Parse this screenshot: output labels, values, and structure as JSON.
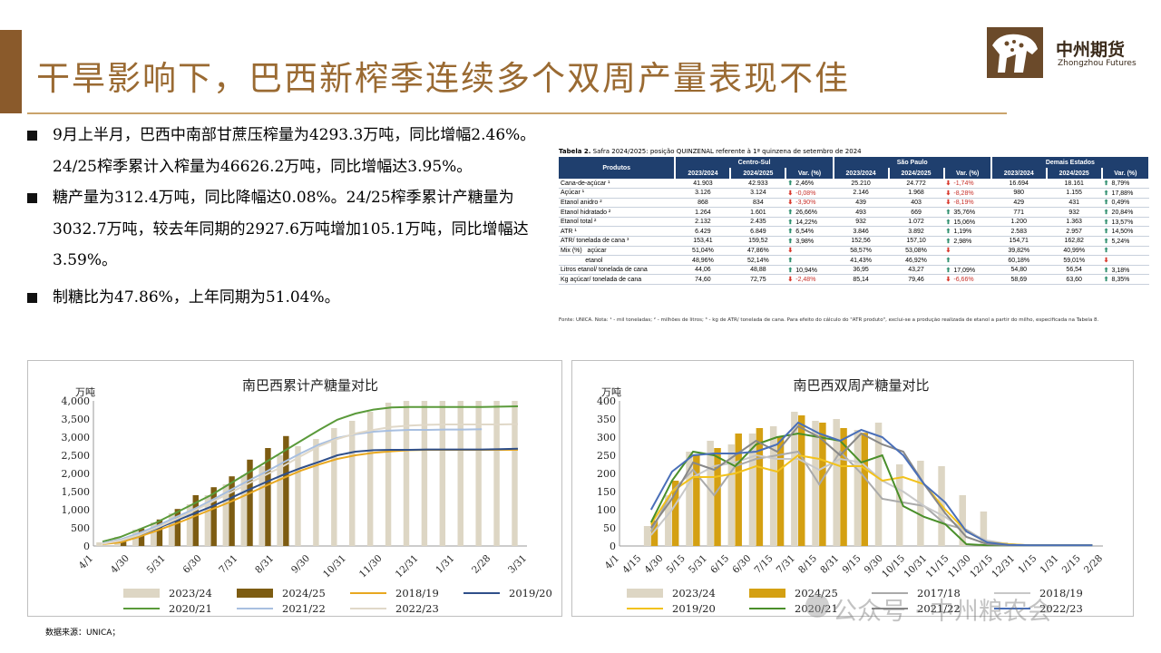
{
  "title": "干旱影响下，巴西新榨季连续多个双周产量表现不佳",
  "logo": {
    "cn": "中州期货",
    "en": "Zhongzhou Futures"
  },
  "bullets": [
    "9月上半月，巴西中南部甘蔗压榨量为4293.3万吨，同比增幅2.46%。24/25榨季累计入榨量为46626.2万吨，同比增幅达3.95%。",
    "糖产量为312.4万吨，同比降幅达0.08%。24/25榨季累计产糖量为3032.7万吨，较去年同期的2927.6万吨增加105.1万吨，同比增幅达3.59%。",
    "制糖比为47.86%，上年同期为51.04%。"
  ],
  "table": {
    "caption_bold": "Tabela 2.",
    "caption_rest": " Safra 2024/2025: posição QUINZENAL referente à 1ª quinzena de setembro de 2024",
    "header_product": "Produtos",
    "groups": [
      "Centro-Sul",
      "São Paulo",
      "Demais Estados"
    ],
    "subheaders": [
      "2023/2024",
      "2024/2025",
      "Var. (%)"
    ],
    "rows": [
      {
        "label": "Cana-de-açúcar ¹",
        "cells": [
          [
            "41.903",
            "42.933",
            "up",
            "2,46%"
          ],
          [
            "25.210",
            "24.772",
            "down",
            "-1,74%"
          ],
          [
            "16.694",
            "18.161",
            "up",
            "8,79%"
          ]
        ]
      },
      {
        "label": "Açúcar ¹",
        "cells": [
          [
            "3.126",
            "3.124",
            "down",
            "-0,08%"
          ],
          [
            "2.146",
            "1.968",
            "down",
            "-8,28%"
          ],
          [
            "980",
            "1.155",
            "up",
            "17,88%"
          ]
        ]
      },
      {
        "label": "Etanol anidro ²",
        "cells": [
          [
            "868",
            "834",
            "down",
            "-3,90%"
          ],
          [
            "439",
            "403",
            "down",
            "-8,19%"
          ],
          [
            "429",
            "431",
            "up",
            "0,49%"
          ]
        ]
      },
      {
        "label": "Etanol hidratado ²",
        "cells": [
          [
            "1.264",
            "1.601",
            "up",
            "26,66%"
          ],
          [
            "493",
            "669",
            "up",
            "35,76%"
          ],
          [
            "771",
            "932",
            "up",
            "20,84%"
          ]
        ]
      },
      {
        "label": "Etanol total ²",
        "cells": [
          [
            "2.132",
            "2.435",
            "up",
            "14,22%"
          ],
          [
            "932",
            "1.072",
            "up",
            "15,06%"
          ],
          [
            "1.200",
            "1.363",
            "up",
            "13,57%"
          ]
        ]
      },
      {
        "label": "ATR ¹",
        "cells": [
          [
            "6.429",
            "6.849",
            "up",
            "6,54%"
          ],
          [
            "3.846",
            "3.892",
            "up",
            "1,19%"
          ],
          [
            "2.583",
            "2.957",
            "up",
            "14,50%"
          ]
        ]
      },
      {
        "label": "ATR/ tonelada de cana ³",
        "cells": [
          [
            "153,41",
            "159,52",
            "up",
            "3,98%"
          ],
          [
            "152,56",
            "157,10",
            "up",
            "2,98%"
          ],
          [
            "154,71",
            "162,82",
            "up",
            "5,24%"
          ]
        ]
      },
      {
        "label": "Mix (%)   açúcar",
        "cells": [
          [
            "51,04%",
            "47,86%",
            "down",
            ""
          ],
          [
            "58,57%",
            "53,08%",
            "down",
            ""
          ],
          [
            "39,82%",
            "40,99%",
            "up",
            ""
          ]
        ]
      },
      {
        "label": "              etanol",
        "cells": [
          [
            "48,96%",
            "52,14%",
            "up",
            ""
          ],
          [
            "41,43%",
            "46,92%",
            "up",
            ""
          ],
          [
            "60,18%",
            "59,01%",
            "down",
            ""
          ]
        ]
      },
      {
        "label": "Litros etanol/ tonelada de cana",
        "cells": [
          [
            "44,06",
            "48,88",
            "up",
            "10,94%"
          ],
          [
            "36,95",
            "43,27",
            "up",
            "17,09%"
          ],
          [
            "54,80",
            "56,54",
            "up",
            "3,18%"
          ]
        ]
      },
      {
        "label": "Kg açúcar/ tonelada de cana",
        "cells": [
          [
            "74,60",
            "72,75",
            "down",
            "-2,48%"
          ],
          [
            "85,14",
            "79,46",
            "down",
            "-6,66%"
          ],
          [
            "58,69",
            "63,60",
            "up",
            "8,35%"
          ]
        ]
      }
    ],
    "footnote": "Fonte: UNICA. Nota: ¹ - mil toneladas; ² - milhões de litros; ³ - kg de ATR/ tonelada de cana. Para efeito do cálculo do \"ATR produto\", exclui-se a produção realizada de etanol a partir do milho, especificada na Tabela 8."
  },
  "source": "数据来源：UNICA；",
  "watermark": "公众号 · 中州粮农会",
  "colors": {
    "c2324": "#ddd6c4",
    "c2425": "#7d5c12",
    "c1819": "#e8a820",
    "c1920": "#2f4f8a",
    "c2021": "#5a9a3a",
    "c2122": "#a8bfe0",
    "c2223": "#e0d8c8",
    "c2425b": "#d4a012"
  },
  "chart_data": [
    {
      "type": "bar",
      "title": "南巴西累计产糖量对比",
      "ylabel": "万吨",
      "ylim": [
        0,
        4000
      ],
      "yticks": [
        "0",
        "500",
        "1,000",
        "1,500",
        "2,000",
        "2,500",
        "3,000",
        "3,500",
        "4,000"
      ],
      "xticks": [
        "4/1",
        "4/30",
        "5/31",
        "6/30",
        "7/31",
        "8/31",
        "9/30",
        "10/31",
        "11/30",
        "12/31",
        "1/31",
        "2/28",
        "3/31"
      ],
      "n_points": 24,
      "series": [
        {
          "name": "2023/24",
          "kind": "bar",
          "color": "#ddd6c4",
          "values": [
            100,
            250,
            450,
            650,
            900,
            1150,
            1400,
            1700,
            1950,
            2200,
            2500,
            2750,
            2950,
            3250,
            3450,
            3700,
            3950,
            4000,
            4000,
            4000,
            4000,
            4000,
            4000,
            4000
          ]
        },
        {
          "name": "2024/25",
          "kind": "bar",
          "color": "#7d5c12",
          "values": [
            null,
            130,
            480,
            730,
            1020,
            1400,
            1620,
            1920,
            2380,
            2700,
            3030,
            null,
            null,
            null,
            null,
            null,
            null,
            null,
            null,
            null,
            null,
            null,
            null,
            null
          ]
        },
        {
          "name": "2018/19",
          "kind": "line",
          "color": "#e8a820",
          "values": [
            50,
            100,
            250,
            420,
            600,
            800,
            1000,
            1200,
            1420,
            1650,
            1870,
            2080,
            2250,
            2400,
            2500,
            2570,
            2610,
            2640,
            2650,
            2650,
            2650,
            2650,
            2650,
            2650
          ]
        },
        {
          "name": "2019/20",
          "kind": "line",
          "color": "#2f4f8a",
          "values": [
            80,
            150,
            300,
            480,
            680,
            880,
            1080,
            1300,
            1530,
            1750,
            1960,
            2150,
            2320,
            2500,
            2600,
            2640,
            2650,
            2650,
            2660,
            2660,
            2660,
            2660,
            2670,
            2680
          ]
        },
        {
          "name": "2020/21",
          "kind": "line",
          "color": "#5a9a3a",
          "values": [
            120,
            250,
            450,
            650,
            900,
            1150,
            1400,
            1700,
            2000,
            2300,
            2600,
            2900,
            3200,
            3480,
            3650,
            3760,
            3820,
            3830,
            3830,
            3830,
            3830,
            3830,
            3840,
            3850
          ]
        },
        {
          "name": "2021/22",
          "kind": "line",
          "color": "#a8bfe0",
          "values": [
            80,
            180,
            350,
            550,
            780,
            1000,
            1250,
            1520,
            1780,
            2030,
            2300,
            2560,
            2800,
            2980,
            3080,
            3150,
            3180,
            3200,
            3200,
            3210,
            3210,
            3220,
            null,
            null
          ]
        },
        {
          "name": "2022/23",
          "kind": "line",
          "color": "#e0d8c8",
          "values": [
            60,
            150,
            300,
            500,
            720,
            950,
            1200,
            1450,
            1700,
            1950,
            2200,
            2480,
            2750,
            2950,
            3100,
            3200,
            3280,
            3320,
            3340,
            3350,
            3350,
            3350,
            3350,
            3360
          ]
        }
      ]
    },
    {
      "type": "bar",
      "title": "南巴西双周产糖量对比",
      "ylabel": "万吨",
      "ylim": [
        0,
        400
      ],
      "yticks": [
        "0",
        "50",
        "100",
        "150",
        "200",
        "250",
        "300",
        "350",
        "400"
      ],
      "xticks": [
        "4/1",
        "4/15",
        "4/30",
        "5/15",
        "5/31",
        "6/15",
        "6/30",
        "7/15",
        "7/31",
        "8/15",
        "8/31",
        "9/15",
        "9/30",
        "10/15",
        "10/31",
        "11/15",
        "11/30",
        "12/15",
        "12/31",
        "1/15",
        "1/31",
        "2/15",
        "2/28"
      ],
      "n_points": 23,
      "series": [
        {
          "name": "2023/24",
          "kind": "bar",
          "color": "#ddd6c4",
          "values": [
            null,
            55,
            140,
            260,
            290,
            280,
            310,
            330,
            370,
            345,
            350,
            320,
            340,
            225,
            235,
            220,
            140,
            95,
            10,
            5,
            3,
            5,
            5
          ]
        },
        {
          "name": "2024/25",
          "kind": "bar",
          "color": "#d4a012",
          "values": [
            null,
            70,
            180,
            250,
            270,
            310,
            325,
            300,
            360,
            340,
            325,
            312,
            null,
            null,
            null,
            null,
            null,
            null,
            null,
            null,
            null,
            null,
            null
          ]
        },
        {
          "name": "2017/18",
          "kind": "line",
          "color": "#aaaaaa",
          "values": [
            null,
            40,
            150,
            210,
            140,
            220,
            240,
            250,
            260,
            170,
            260,
            200,
            130,
            120,
            110,
            60,
            45,
            10,
            5,
            2,
            2,
            2,
            2
          ]
        },
        {
          "name": "2018/19",
          "kind": "line",
          "color": "#c8c8c8",
          "values": [
            null,
            30,
            100,
            190,
            220,
            230,
            250,
            240,
            240,
            210,
            240,
            230,
            180,
            150,
            110,
            80,
            40,
            15,
            5,
            2,
            2,
            2,
            2
          ]
        },
        {
          "name": "2019/20",
          "kind": "line",
          "color": "#f2c21b",
          "values": [
            null,
            60,
            150,
            190,
            190,
            200,
            220,
            205,
            250,
            240,
            220,
            220,
            180,
            190,
            170,
            100,
            40,
            10,
            5,
            2,
            2,
            2,
            2
          ]
        },
        {
          "name": "2020/21",
          "kind": "line",
          "color": "#4a8f2a",
          "values": [
            null,
            65,
            180,
            260,
            250,
            220,
            280,
            300,
            310,
            300,
            290,
            230,
            250,
            110,
            80,
            60,
            5,
            2,
            2,
            2,
            2,
            2,
            2
          ]
        },
        {
          "name": "2021/22",
          "kind": "line",
          "color": "#888888",
          "values": [
            null,
            50,
            130,
            230,
            210,
            250,
            290,
            260,
            330,
            300,
            250,
            310,
            280,
            260,
            170,
            90,
            25,
            5,
            2,
            2,
            2,
            2,
            2
          ]
        },
        {
          "name": "2022/23",
          "kind": "line",
          "color": "#4a6fb8",
          "values": [
            null,
            100,
            205,
            250,
            255,
            255,
            260,
            280,
            340,
            310,
            290,
            320,
            300,
            250,
            170,
            120,
            40,
            10,
            3,
            2,
            2,
            2,
            2
          ]
        }
      ]
    }
  ],
  "legends": [
    [
      "2023/24",
      "2024/25",
      "2018/19",
      "2019/20",
      "2020/21",
      "2021/22",
      "2022/23"
    ],
    [
      "2023/24",
      "2024/25",
      "2017/18",
      "2018/19",
      "2019/20",
      "2020/21",
      "2021/22",
      "2022/23"
    ]
  ]
}
